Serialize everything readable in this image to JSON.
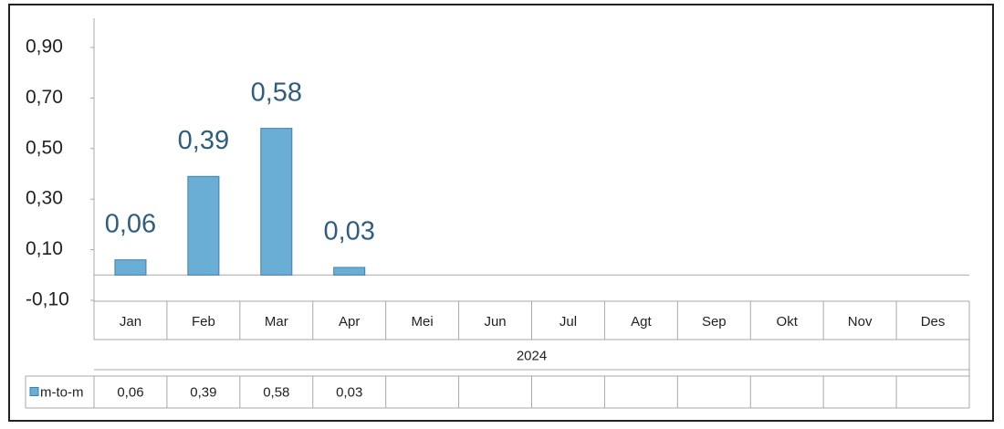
{
  "chart_data": {
    "type": "bar",
    "categories": [
      "Jan",
      "Feb",
      "Mar",
      "Apr",
      "Mei",
      "Jun",
      "Jul",
      "Agt",
      "Sep",
      "Okt",
      "Nov",
      "Des"
    ],
    "group_label": "2024",
    "series": [
      {
        "name": "m-to-m",
        "color": "#6aaed6",
        "values": [
          0.06,
          0.39,
          0.58,
          0.03,
          null,
          null,
          null,
          null,
          null,
          null,
          null,
          null
        ],
        "value_labels": [
          "0,06",
          "0,39",
          "0,58",
          "0,03",
          null,
          null,
          null,
          null,
          null,
          null,
          null,
          null
        ]
      }
    ],
    "ylim": [
      -0.1,
      0.9
    ],
    "yticks": [
      {
        "value": -0.1,
        "label": "-0,10"
      },
      {
        "value": 0.1,
        "label": "0,10"
      },
      {
        "value": 0.3,
        "label": "0,30"
      },
      {
        "value": 0.5,
        "label": "0,50"
      },
      {
        "value": 0.7,
        "label": "0,70"
      },
      {
        "value": 0.9,
        "label": "0,90"
      }
    ],
    "grid": false
  }
}
